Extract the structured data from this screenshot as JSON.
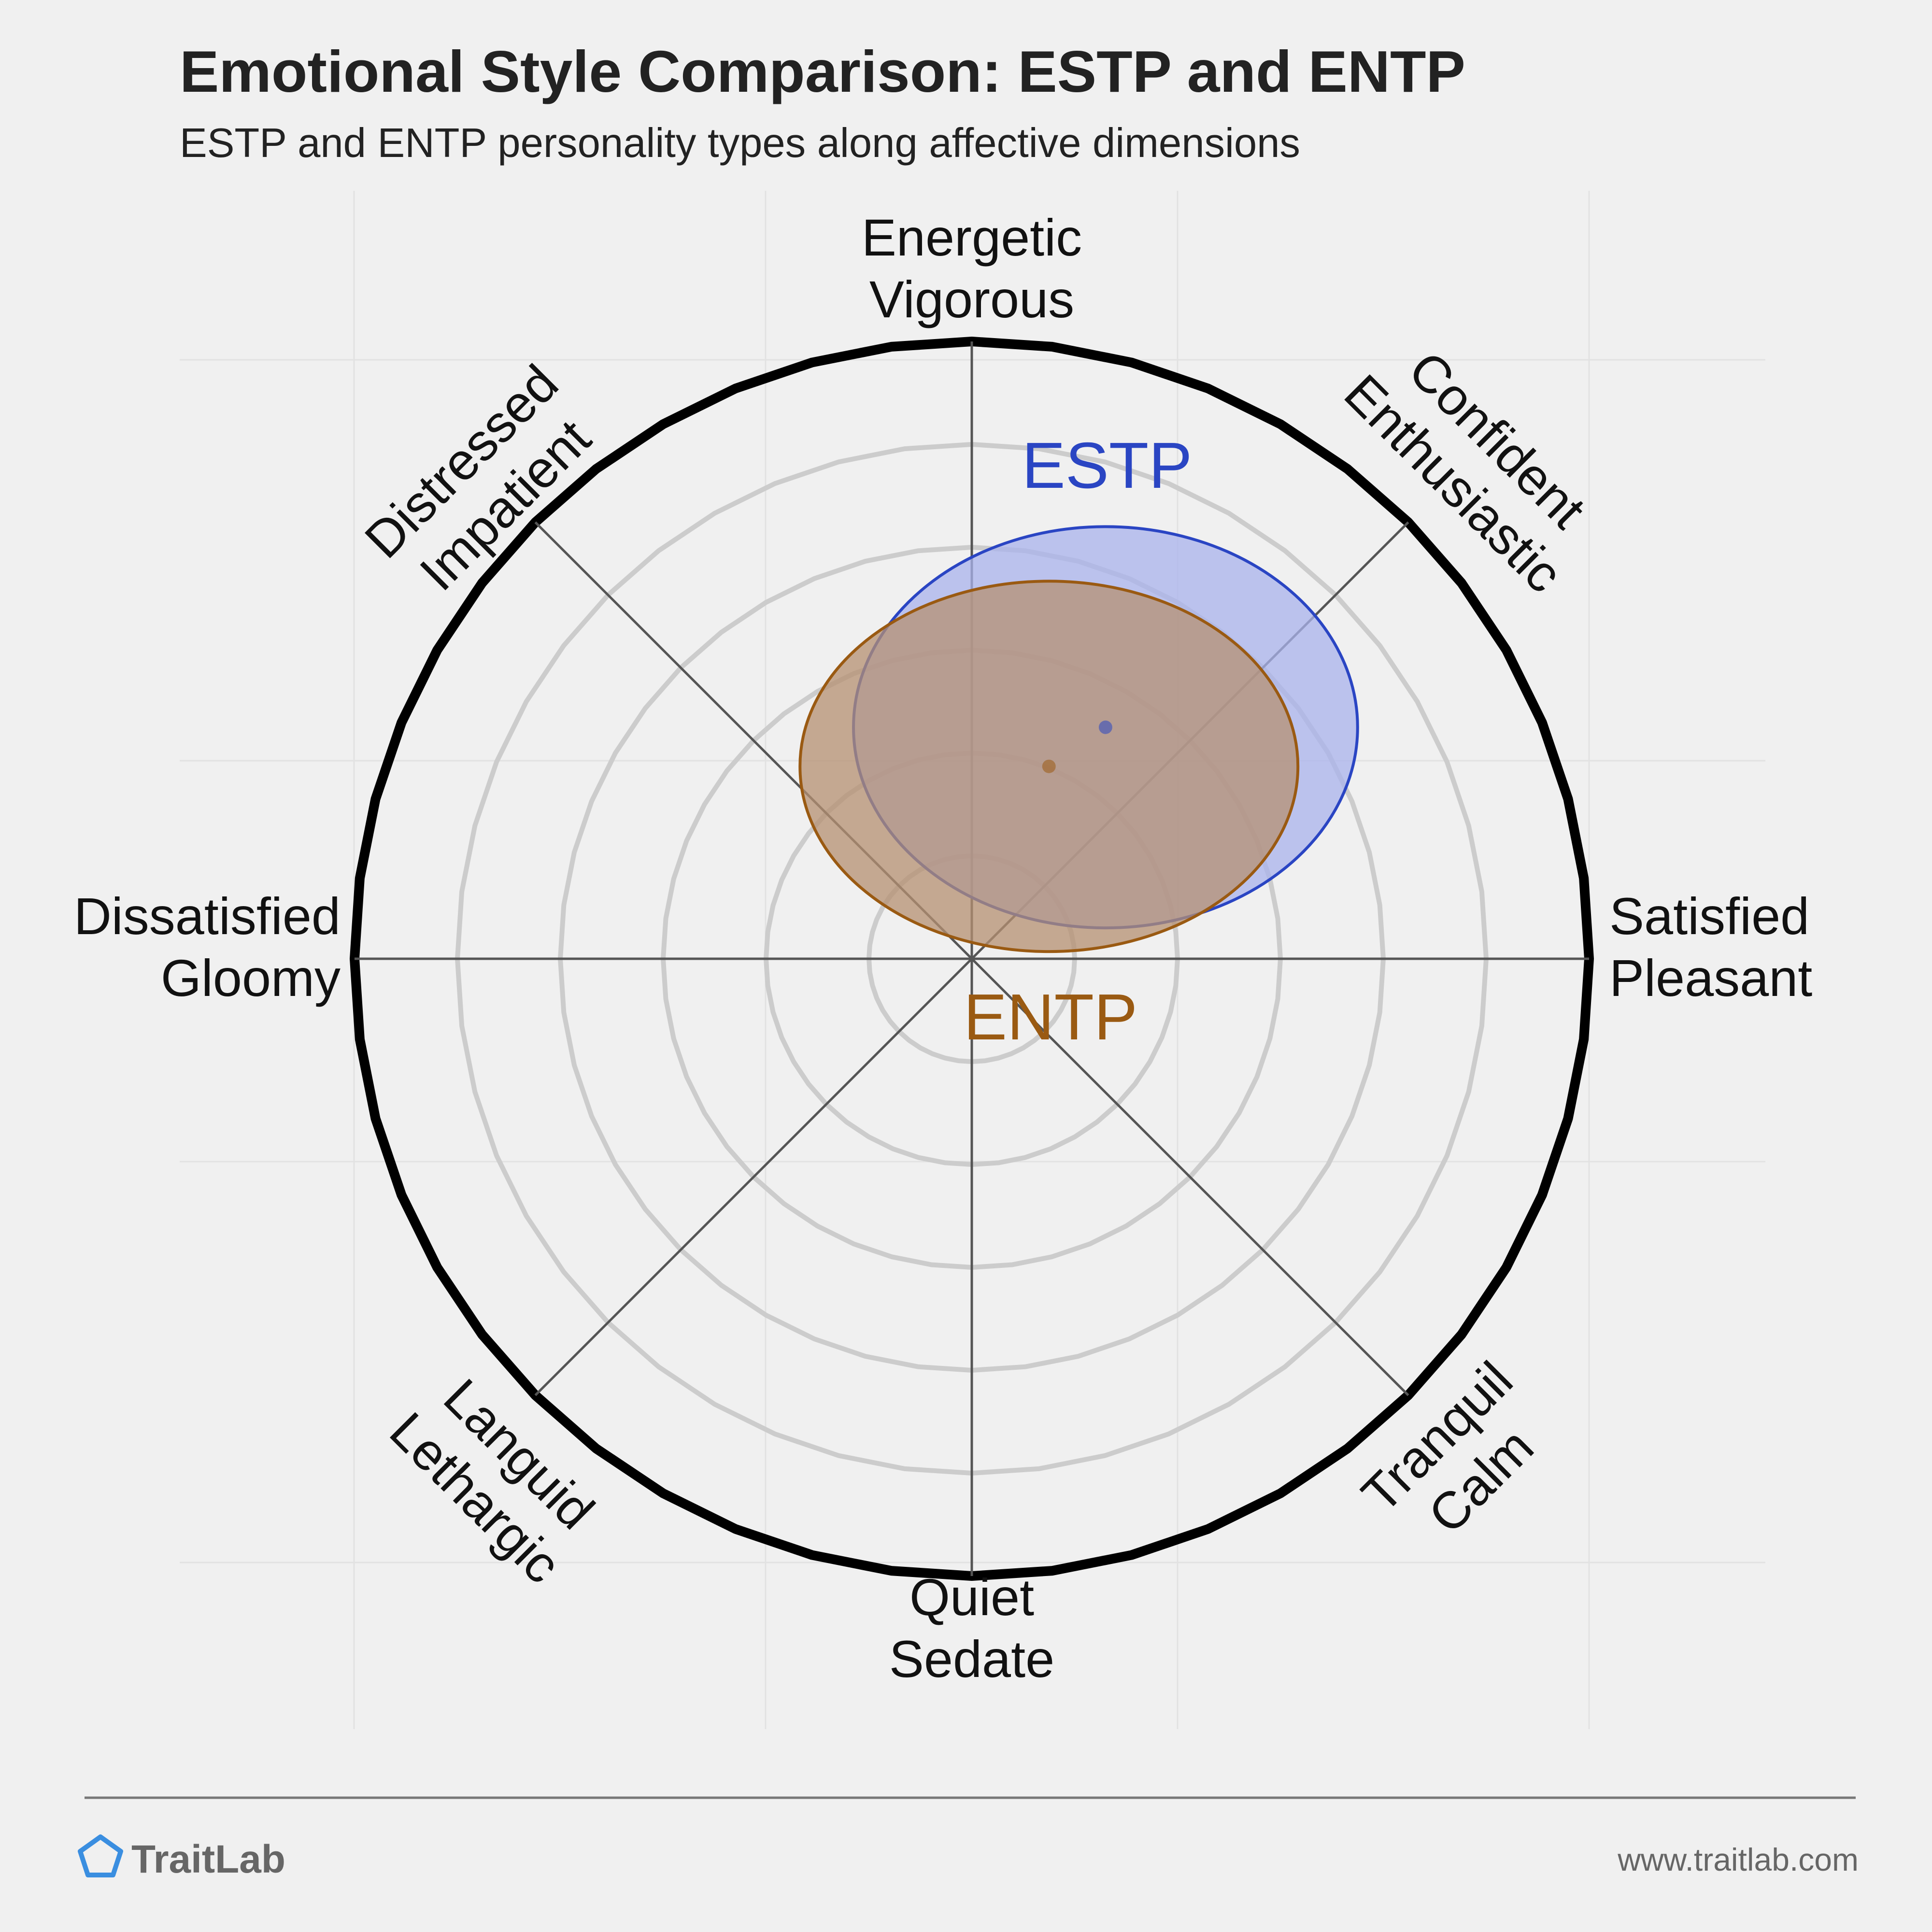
{
  "title": "Emotional Style Comparison: ESTP and ENTP",
  "subtitle": "ESTP and ENTP personality types along affective dimensions",
  "chart_data": {
    "type": "scatter",
    "title": "Emotional Style Comparison: ESTP and ENTP",
    "subtitle": "ESTP and ENTP personality types along affective dimensions",
    "axes": {
      "x": {
        "negative": "Dissatisfied\nGloomy",
        "positive": "Satisfied\nPleasant"
      },
      "y": {
        "negative": "Quiet\nSedate",
        "positive": "Energetic\nVigorous"
      }
    },
    "dimension_labels": [
      {
        "key": "energetic",
        "lines": [
          "Energetic",
          "Vigorous"
        ]
      },
      {
        "key": "confident",
        "lines": [
          "Confident",
          "Enthusiastic"
        ]
      },
      {
        "key": "satisfied",
        "lines": [
          "Satisfied",
          "Pleasant"
        ]
      },
      {
        "key": "tranquil",
        "lines": [
          "Tranquil",
          "Calm"
        ]
      },
      {
        "key": "quiet",
        "lines": [
          "Quiet",
          "Sedate"
        ]
      },
      {
        "key": "languid",
        "lines": [
          "Languid",
          "Lethargic"
        ]
      },
      {
        "key": "dissatisfied",
        "lines": [
          "Dissatisfied",
          "Gloomy"
        ]
      },
      {
        "key": "distressed",
        "lines": [
          "Distressed",
          "Impatient"
        ]
      }
    ],
    "radius": 6,
    "rings": [
      1,
      2,
      3,
      4,
      5
    ],
    "series": [
      {
        "name": "ESTP",
        "center": [
          1.3,
          2.25
        ],
        "spread": [
          2.45,
          1.95
        ],
        "color": "#2a45c3",
        "fill": "#aab3ec"
      },
      {
        "name": "ENTP",
        "center": [
          0.75,
          1.87
        ],
        "spread": [
          2.42,
          1.8
        ],
        "color": "#9a5a12",
        "fill": "#b69072"
      }
    ]
  },
  "footer": {
    "brand": "TraitLab",
    "url": "www.traitlab.com"
  },
  "colors": {
    "background": "#f0f0f0",
    "ring": "#cccccc",
    "outer_ring": "#000000",
    "axis": "#555555",
    "brand_icon": "#3a8ee0"
  },
  "icons": {
    "brand": "pentagon-logo-icon"
  }
}
